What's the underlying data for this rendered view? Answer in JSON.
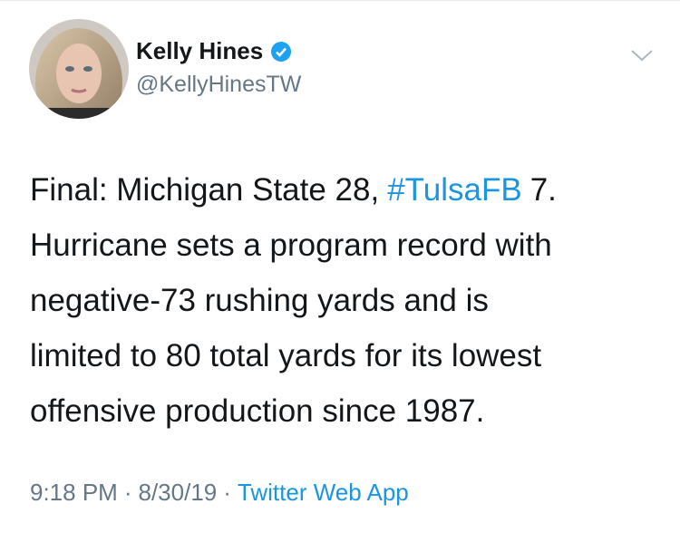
{
  "author": {
    "name": "Kelly Hines",
    "handle": "@KellyHinesTW"
  },
  "tweet": {
    "lines": [
      [
        "Final: Michigan State 28,",
        "#TulsaFB",
        "7."
      ],
      [
        "Hurricane sets a program record with"
      ],
      [
        "negative-73 rushing yards and is"
      ],
      [
        "limited to 80 total yards for its lowest"
      ],
      [
        "offensive production since 1987."
      ]
    ],
    "hashtags": [
      "#TulsaFB"
    ]
  },
  "meta": {
    "time": "9:18 PM",
    "separator": "·",
    "date": "8/30/19",
    "source": "Twitter Web App"
  }
}
